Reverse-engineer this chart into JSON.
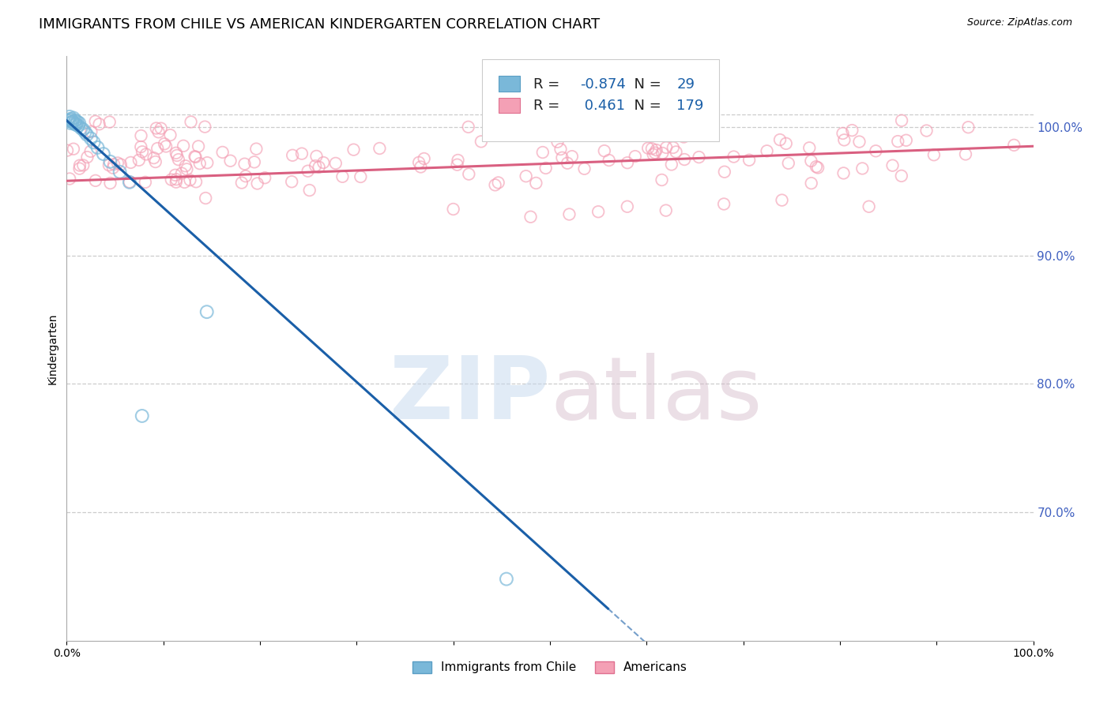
{
  "title": "IMMIGRANTS FROM CHILE VS AMERICAN KINDERGARTEN CORRELATION CHART",
  "source": "Source: ZipAtlas.com",
  "ylabel": "Kindergarten",
  "right_ytick_labels": [
    "100.0%",
    "90.0%",
    "80.0%",
    "70.0%"
  ],
  "right_ytick_values": [
    1.0,
    0.9,
    0.8,
    0.7
  ],
  "legend_label1": "Immigrants from Chile",
  "legend_label2": "Americans",
  "R1": -0.874,
  "N1": 29,
  "R2": 0.461,
  "N2": 179,
  "blue_color": "#7ab8d9",
  "blue_edge_color": "#5a9ec4",
  "blue_line_color": "#1a5fa8",
  "pink_color": "#f4a0b5",
  "pink_edge_color": "#e07090",
  "pink_line_color": "#d95f80",
  "watermark_zip_color": "#c5d8ee",
  "watermark_atlas_color": "#d4b8c8",
  "background_color": "#ffffff",
  "grid_color": "#cccccc",
  "right_tick_color": "#4060c0",
  "title_fontsize": 13,
  "axis_label_fontsize": 10,
  "tick_label_fontsize": 10,
  "source_fontsize": 9,
  "ylim_min": 0.6,
  "ylim_max": 1.055,
  "xlim_min": 0.0,
  "xlim_max": 1.0,
  "blue_line_x0": 0.0,
  "blue_line_y0": 1.005,
  "blue_line_x1": 0.56,
  "blue_line_y1": 0.625,
  "pink_line_x0": 0.0,
  "pink_line_y0": 0.958,
  "pink_line_x1": 1.0,
  "pink_line_y1": 0.985,
  "blue_scatter": {
    "x": [
      0.002,
      0.003,
      0.004,
      0.005,
      0.006,
      0.007,
      0.008,
      0.009,
      0.01,
      0.011,
      0.012,
      0.013,
      0.015,
      0.017,
      0.019,
      0.021,
      0.025,
      0.028,
      0.032,
      0.038,
      0.045,
      0.055,
      0.065,
      0.003,
      0.006,
      0.009
    ],
    "y": [
      1.005,
      1.008,
      1.003,
      1.006,
      1.004,
      1.007,
      1.003,
      1.005,
      1.002,
      1.004,
      1.001,
      1.003,
      0.999,
      0.998,
      0.996,
      0.994,
      0.991,
      0.988,
      0.984,
      0.979,
      0.973,
      0.965,
      0.957,
      1.006,
      1.004,
      1.002
    ]
  },
  "blue_outliers": {
    "x": [
      0.145,
      0.078,
      0.455
    ],
    "y": [
      0.856,
      0.775,
      0.648
    ]
  },
  "pink_scatter_x_ranges": [
    [
      0.0,
      1.0
    ]
  ],
  "top_horizontal_line_y": 1.01
}
